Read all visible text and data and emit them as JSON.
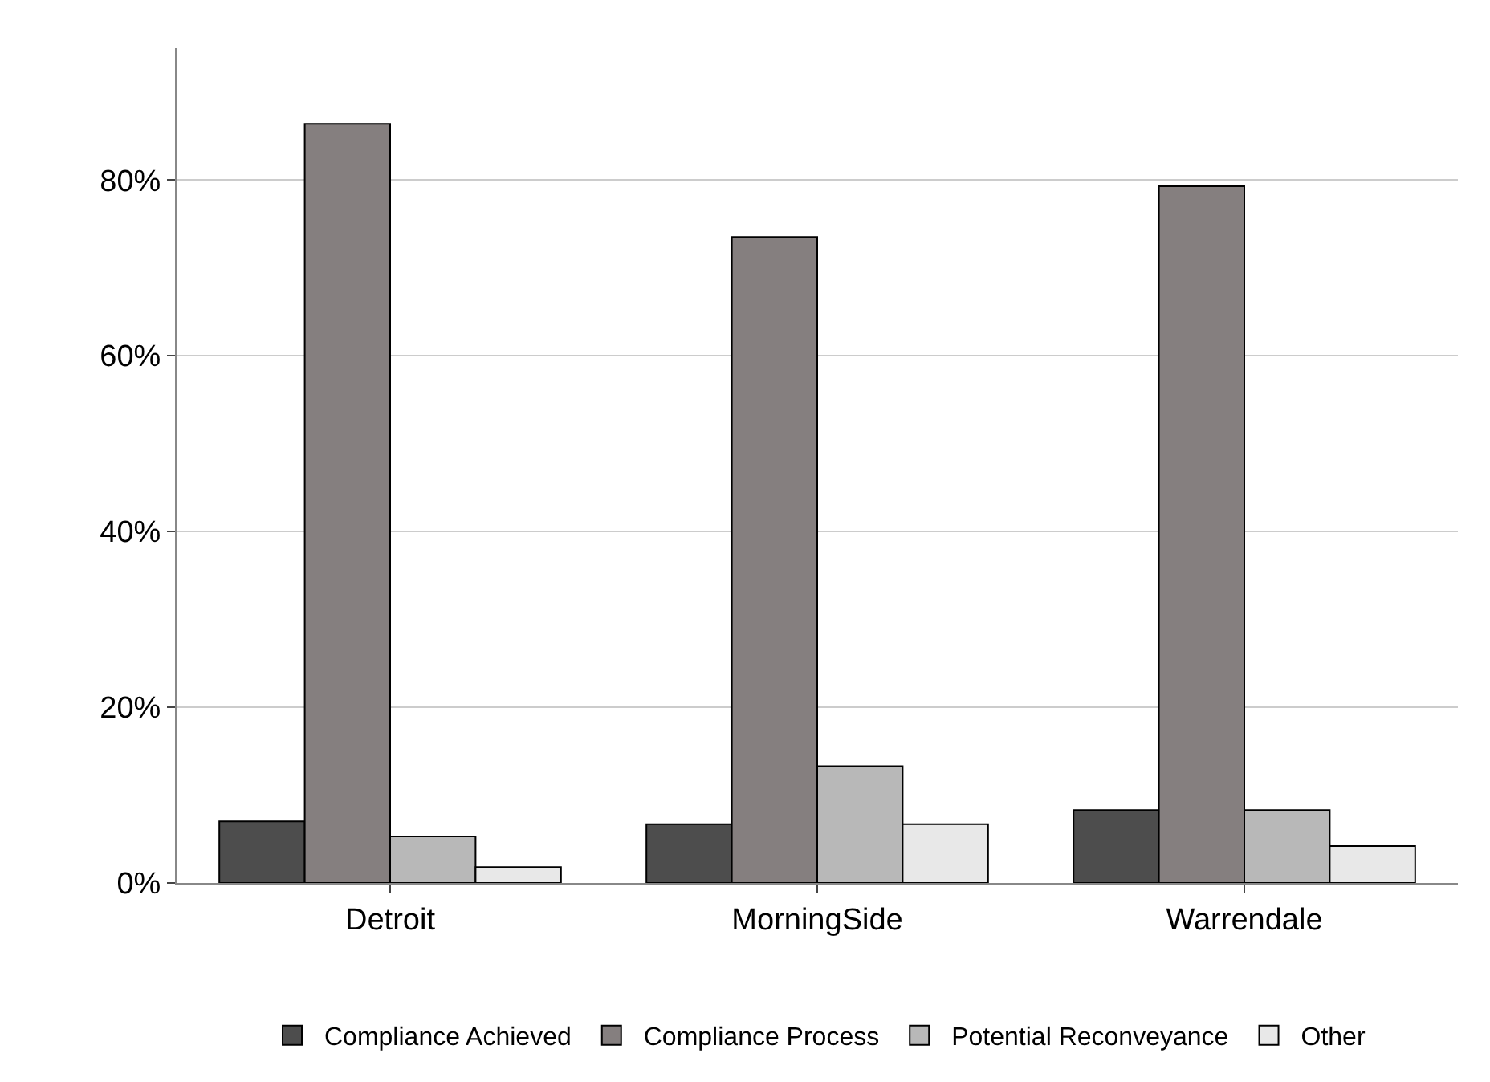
{
  "chart_data": {
    "type": "bar",
    "categories": [
      "Detroit",
      "MorningSide",
      "Warrendale"
    ],
    "series": [
      {
        "name": "Compliance Achieved",
        "color": "#4d4d4d",
        "values": [
          7.0,
          6.7,
          8.3
        ]
      },
      {
        "name": "Compliance Process",
        "color": "#857f7f",
        "values": [
          86.4,
          73.5,
          79.3
        ]
      },
      {
        "name": "Potential Reconveyance",
        "color": "#b8b8b8",
        "values": [
          5.3,
          13.3,
          8.3
        ]
      },
      {
        "name": "Other",
        "color": "#e8e8e8",
        "values": [
          1.8,
          6.7,
          4.2
        ]
      }
    ],
    "ylim": [
      0,
      95
    ],
    "yticks": [
      {
        "value": 0,
        "label": "0%"
      },
      {
        "value": 20,
        "label": "20%"
      },
      {
        "value": 40,
        "label": "40%"
      },
      {
        "value": 60,
        "label": "60%"
      },
      {
        "value": 80,
        "label": "80%"
      }
    ],
    "grid": "y",
    "legend": "bottom"
  }
}
